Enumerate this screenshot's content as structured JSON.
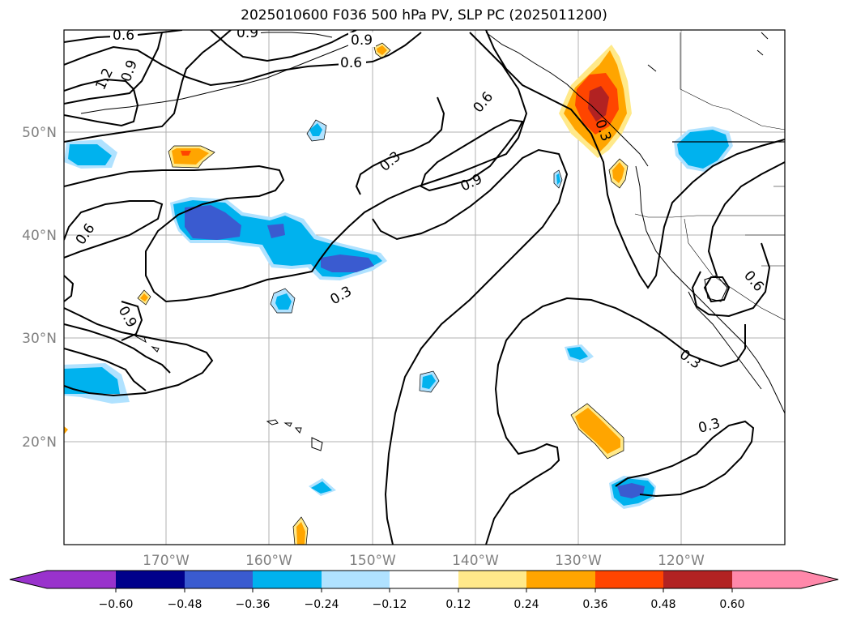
{
  "title": "2025010600 F036 500 hPa PV, SLP PC (2025011200)",
  "lat_labels": [
    "50°N",
    "40°N",
    "30°N",
    "20°N"
  ],
  "lon_labels": [
    "170°W",
    "160°W",
    "150°W",
    "140°W",
    "130°W",
    "120°W"
  ],
  "colorbar": {
    "ticks": [
      "−0.60",
      "−0.48",
      "−0.36",
      "−0.24",
      "−0.12",
      "0.12",
      "0.24",
      "0.36",
      "0.48",
      "0.60"
    ],
    "colors": [
      "#9932cc",
      "#00008b",
      "#3a5bd0",
      "#00b2ee",
      "#b0e2ff",
      "#ffffff",
      "#ffe98a",
      "#ffa500",
      "#ff4500",
      "#b22222",
      "#ff88aa"
    ]
  },
  "contour_labels": [
    "0.6",
    "0.9",
    "0.9",
    "0.6",
    "1.2",
    "0.9",
    "0.3",
    "0.6",
    "0.9",
    "0.6",
    "0.3",
    "0.9",
    "0.3",
    "0.6",
    "0.3",
    "0.3"
  ],
  "colors": {
    "neg_light": "#b0e2ff",
    "neg_mid": "#00b2ee",
    "neg_dark": "#3a5bd0",
    "pos_light": "#ffe98a",
    "pos_mid": "#ffa500",
    "pos_dark": "#ff4500",
    "pos_darker": "#b22222"
  }
}
